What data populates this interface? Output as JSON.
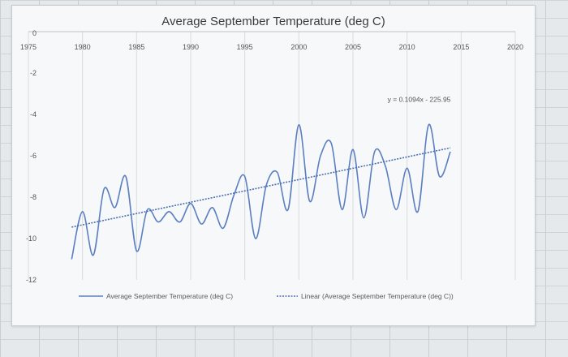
{
  "colors": {
    "series": "#5b7fc0",
    "trendline": "#4a6fb5",
    "gridline": "#d9dcdf",
    "background": "#f7f8f9"
  },
  "chart_data": {
    "type": "scatter",
    "title": "Average September Temperature (deg C)",
    "xlabel": "",
    "ylabel": "",
    "xlim": [
      1975,
      2020
    ],
    "ylim": [
      -12,
      0
    ],
    "x_ticks": [
      "1975",
      "1980",
      "1985",
      "1990",
      "1995",
      "2000",
      "2005",
      "2010",
      "2015",
      "2020"
    ],
    "y_ticks": [
      "0",
      "-2",
      "-4",
      "-6",
      "-8",
      "-10",
      "-12"
    ],
    "series": [
      {
        "name": "Average September Temperature (deg C)",
        "style": "smooth-line",
        "x": [
          1979,
          1980,
          1981,
          1982,
          1983,
          1984,
          1985,
          1986,
          1987,
          1988,
          1989,
          1990,
          1991,
          1992,
          1993,
          1994,
          1995,
          1996,
          1997,
          1998,
          1999,
          2000,
          2001,
          2002,
          2003,
          2004,
          2005,
          2006,
          2007,
          2008,
          2009,
          2010,
          2011,
          2012,
          2013,
          2014
        ],
        "y": [
          -11.0,
          -8.7,
          -10.8,
          -7.6,
          -8.5,
          -7.0,
          -10.6,
          -8.6,
          -9.2,
          -8.7,
          -9.2,
          -8.3,
          -9.3,
          -8.5,
          -9.5,
          -7.9,
          -7.0,
          -10.0,
          -7.4,
          -6.8,
          -8.6,
          -4.5,
          -8.2,
          -6.0,
          -5.4,
          -8.6,
          -5.7,
          -9.0,
          -5.8,
          -6.5,
          -8.6,
          -6.6,
          -8.7,
          -4.5,
          -7.0,
          -5.8
        ]
      }
    ],
    "trendline": {
      "name": "Linear (Average September Temperature (deg C))",
      "equation": "y = 0.1094x - 225.95",
      "slope": 0.1094,
      "intercept": -225.95,
      "x_range": [
        1979,
        2014
      ]
    },
    "legend_position": "bottom"
  }
}
